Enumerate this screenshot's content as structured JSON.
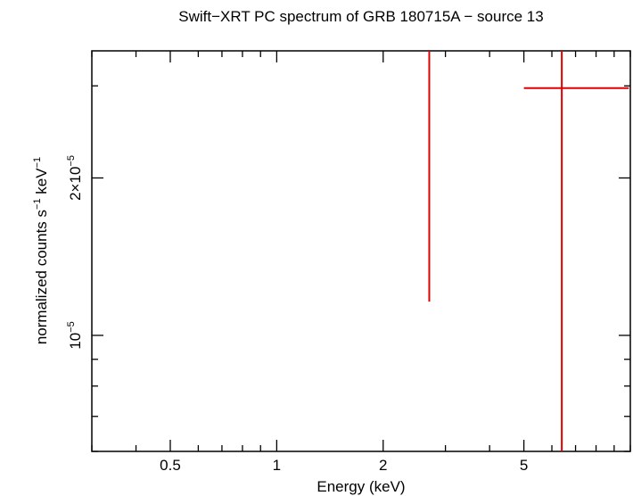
{
  "chart_data": {
    "type": "scatter",
    "title": "Swift−XRT PC spectrum of GRB 180715A − source 13",
    "xlabel": "Energy (keV)",
    "ylabel_main": "normalized counts s",
    "ylabel_sup1": "−1",
    "ylabel_mid": " keV",
    "ylabel_sup2": "−1",
    "x_scale": "log",
    "y_scale": "log",
    "xlim": [
      0.3,
      10.0
    ],
    "ylim": [
      6e-06,
      3.5e-05
    ],
    "x_ticks": [
      {
        "value": 0.5,
        "label": "0.5"
      },
      {
        "value": 1,
        "label": "1"
      },
      {
        "value": 2,
        "label": "2"
      },
      {
        "value": 5,
        "label": "5"
      }
    ],
    "y_ticks": [
      {
        "value": 1e-05,
        "base": "10",
        "exp": "−5"
      },
      {
        "value": 2e-05,
        "base": "2×10",
        "exp": "−5"
      }
    ],
    "series": [
      {
        "color": "#e00000",
        "points": [
          {
            "x": 2.7,
            "y": 2.2e-05,
            "xerr": [
              2.7,
              2.7
            ],
            "yerr": [
              1.16e-05,
              3.5e-05
            ]
          },
          {
            "x": 6.4,
            "y": 2.97e-05,
            "xerr": [
              5.0,
              9.9
            ],
            "yerr": [
              6e-06,
              3.5e-05
            ]
          }
        ]
      }
    ]
  }
}
